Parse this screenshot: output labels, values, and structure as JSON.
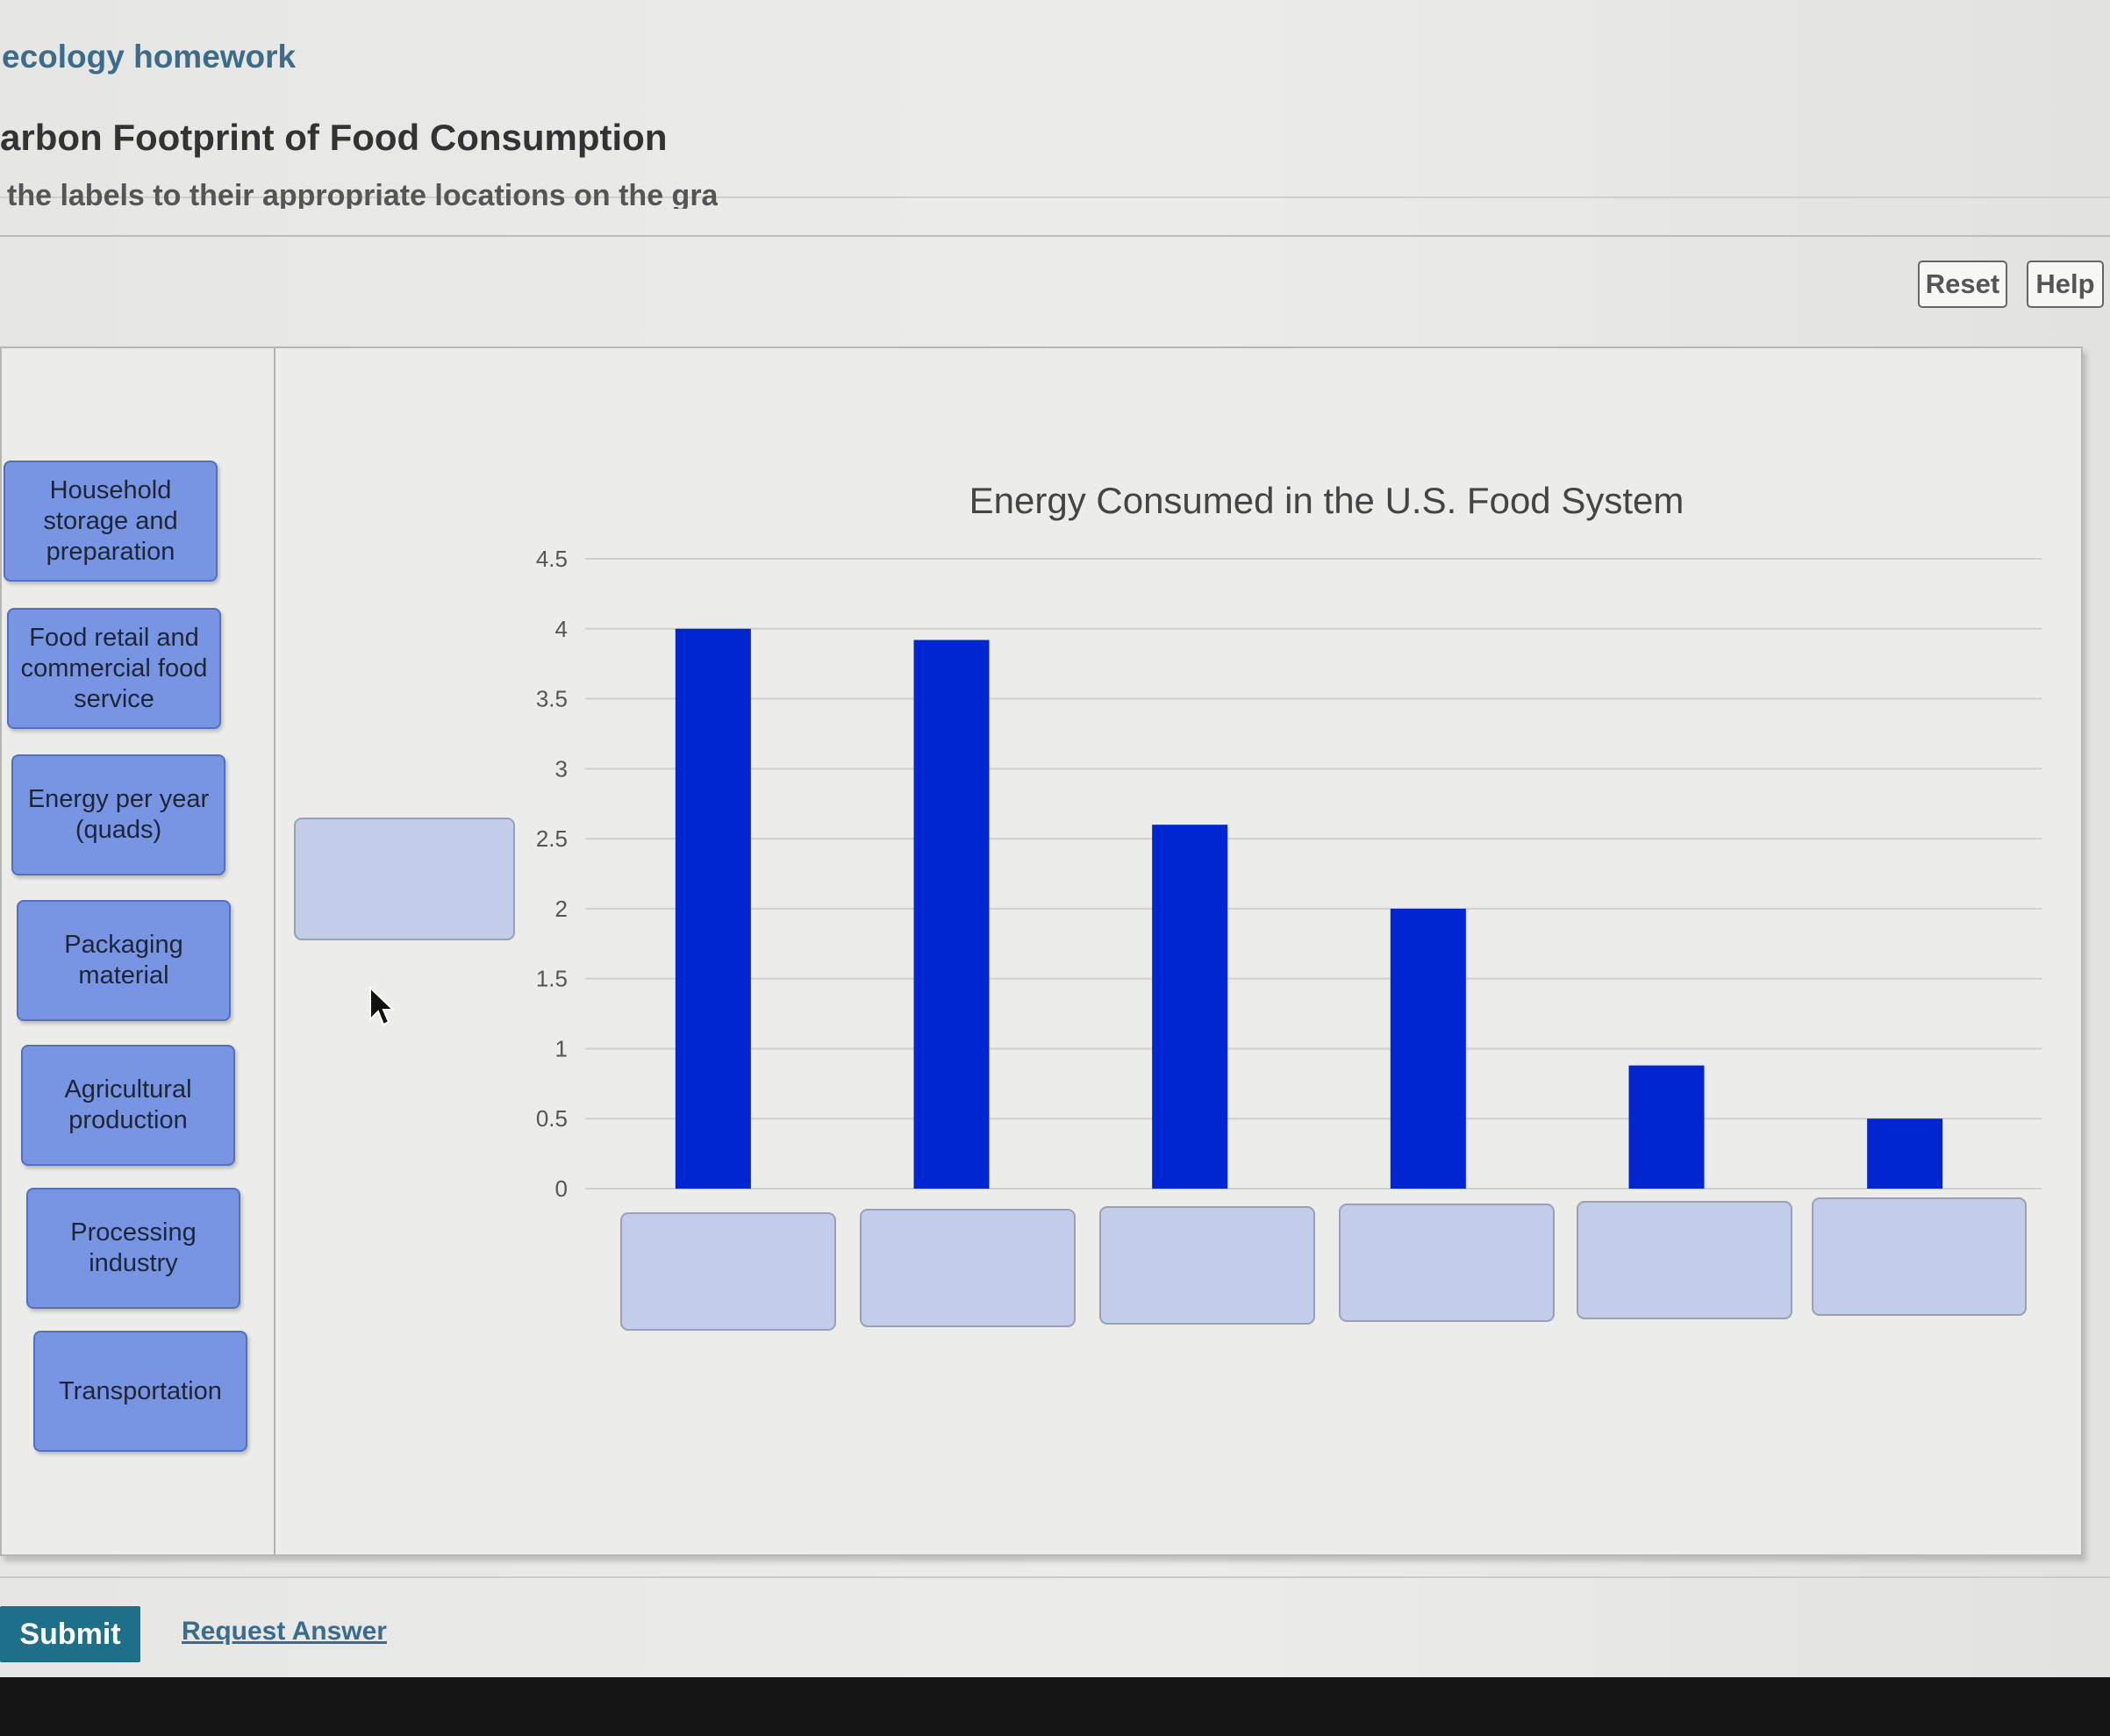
{
  "header": {
    "breadcrumb": "ecology homework",
    "title": "arbon Footprint of Food Consumption",
    "instruction_partial": "the labels to their appropriate locations on the graph."
  },
  "toolbar": {
    "reset_label": "Reset",
    "help_label": "Help"
  },
  "labels": [
    "Household storage and preparation",
    "Food retail and commercial food service",
    "Energy per year (quads)",
    "Packaging material",
    "Agricultural production",
    "Processing industry",
    "Transportation"
  ],
  "chart_data": {
    "type": "bar",
    "title": "Energy Consumed in the U.S. Food System",
    "xlabel": "",
    "ylabel": "",
    "categories": [
      "",
      "",
      "",
      "",
      "",
      ""
    ],
    "values": [
      4.0,
      3.92,
      2.6,
      2.0,
      0.88,
      0.5
    ],
    "ylim": [
      0,
      4.5
    ],
    "yticks": [
      "0",
      "0.5",
      "1",
      "1.5",
      "2",
      "2.5",
      "3",
      "3.5",
      "4",
      "4.5"
    ],
    "grid": true,
    "bar_color": "#0026d1"
  },
  "footer": {
    "submit_label": "Submit",
    "request_answer_label": "Request Answer"
  },
  "colors": {
    "accent": "#1f6f8b",
    "label_tile": "#7795e3",
    "drop_zone": "#c3cdea"
  }
}
